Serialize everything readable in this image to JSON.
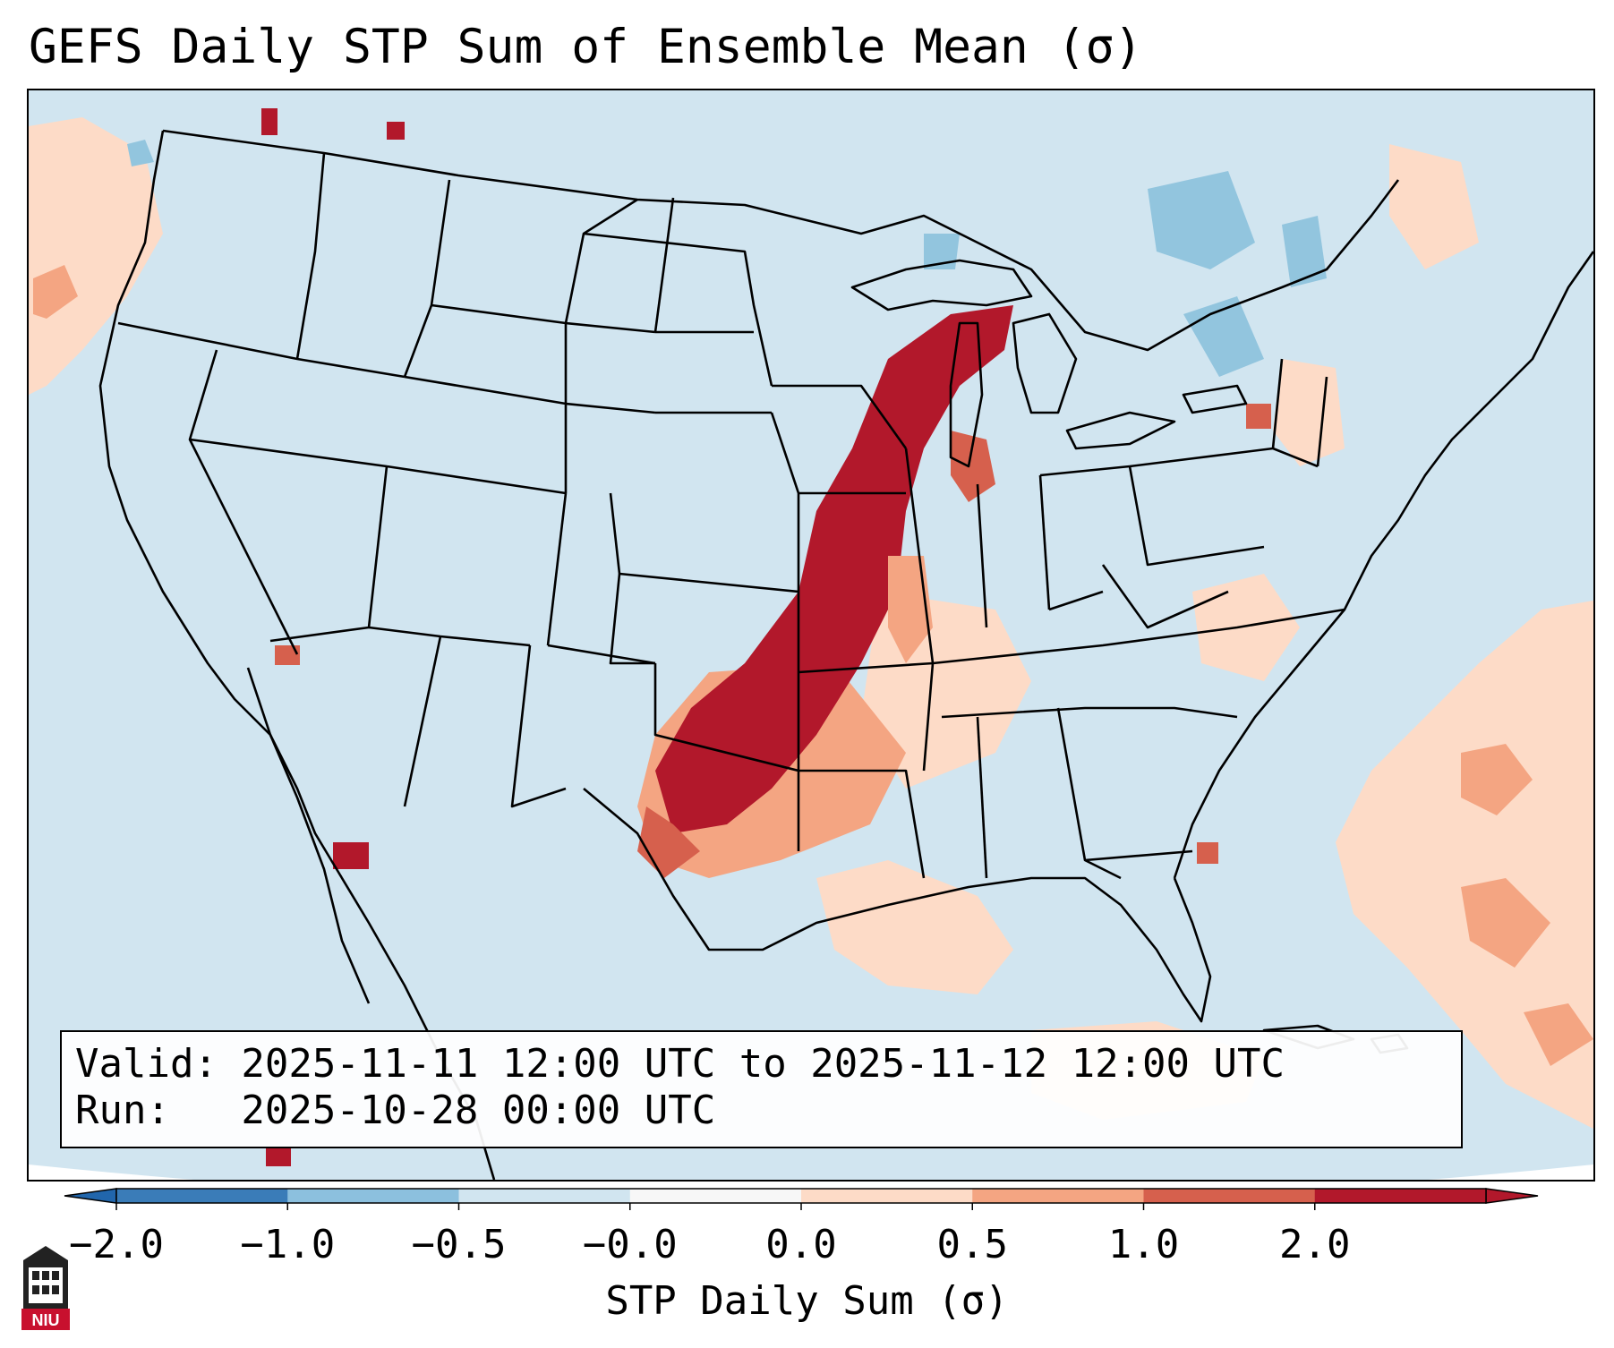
{
  "title": "GEFS Daily STP Sum of Ensemble Mean (σ)",
  "info": {
    "valid_line": "Valid: 2025-11-11 12:00 UTC to 2025-11-12 12:00 UTC",
    "run_line": "Run:   2025-10-28 00:00 UTC"
  },
  "colorbar": {
    "label": "STP Daily Sum (σ)",
    "ticks": [
      "−2.0",
      "−1.0",
      "−0.5",
      "−0.0",
      "0.0",
      "0.5",
      "1.0",
      "2.0"
    ],
    "bin_colors": [
      "#3a7cb8",
      "#8cc0de",
      "#d1e5f0",
      "#f7f7f7",
      "#fddbc7",
      "#f4a582",
      "#d6604d",
      "#b2182b"
    ],
    "under_color": "#2166ac",
    "over_color": "#b2182b"
  },
  "map": {
    "background_color": "#d1e5f0",
    "outside_color": "#ffffff",
    "colors": {
      "strong_positive": "#b2182b",
      "positive": "#d6604d",
      "moderate_positive": "#f4a582",
      "weak_positive": "#fddbc7",
      "weak_negative": "#92c5de"
    }
  },
  "logo": {
    "text": "NIU",
    "icon": "niu-tower-icon"
  }
}
